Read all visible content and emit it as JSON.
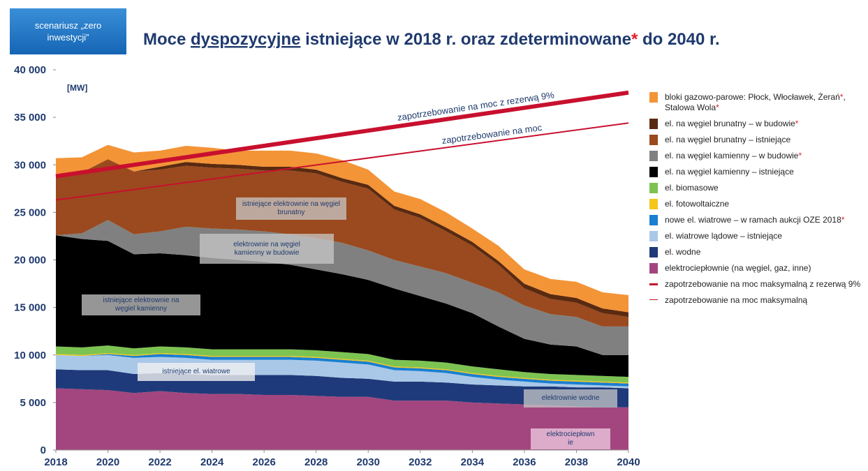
{
  "badge": "scenariusz „zero inwestycji”",
  "chart_data": {
    "type": "stacked_area",
    "title": [
      {
        "text": "Moce "
      },
      {
        "text": "dyspozycyjne",
        "underline": true
      },
      {
        "text": " istniejące w 2018 r. oraz zdeterminowane"
      },
      {
        "text": "*",
        "color": "#e0202a"
      },
      {
        "text": " do 2040 r."
      }
    ],
    "unit_label": "[MW]",
    "x": [
      2018,
      2019,
      2020,
      2021,
      2022,
      2023,
      2024,
      2025,
      2026,
      2027,
      2028,
      2029,
      2030,
      2031,
      2032,
      2033,
      2034,
      2035,
      2036,
      2037,
      2038,
      2039,
      2040
    ],
    "xlim": [
      2018,
      2040
    ],
    "xticks": [
      2018,
      2020,
      2022,
      2024,
      2026,
      2028,
      2030,
      2032,
      2034,
      2036,
      2038,
      2040
    ],
    "ylim": [
      0,
      40000
    ],
    "yticks": [
      0,
      {
        "value": 5000,
        "label": "5 000"
      },
      {
        "value": 10000,
        "label": "10 000"
      },
      {
        "value": 15000,
        "label": "15 000"
      },
      {
        "value": 20000,
        "label": "20 000"
      },
      {
        "value": 25000,
        "label": "25 000"
      },
      {
        "value": 30000,
        "label": "30 000"
      },
      {
        "value": 35000,
        "label": "35 000"
      },
      {
        "value": 40000,
        "label": "40 000"
      }
    ],
    "series": [
      {
        "name": "elektrociepłownie (na węgiel, gaz, inne)",
        "color": "#a3467f",
        "values": [
          6500,
          6400,
          6300,
          6000,
          6200,
          6000,
          5900,
          5900,
          5800,
          5800,
          5700,
          5600,
          5600,
          5200,
          5200,
          5200,
          5000,
          4900,
          4800,
          4700,
          4600,
          4500,
          4500
        ]
      },
      {
        "name": "el. wodne",
        "color": "#1f3a7a",
        "values": [
          2000,
          2000,
          2100,
          2000,
          1900,
          2000,
          2000,
          2000,
          2100,
          2100,
          2100,
          2000,
          1900,
          2000,
          2000,
          1900,
          1900,
          1900,
          1900,
          2000,
          2000,
          2100,
          2000
        ]
      },
      {
        "name": "el. wiatrowe lądowe – istniejące",
        "color": "#a9c8e8",
        "values": [
          1500,
          1500,
          1600,
          1700,
          1700,
          1700,
          1600,
          1600,
          1600,
          1600,
          1600,
          1600,
          1500,
          1200,
          1100,
          1000,
          800,
          600,
          500,
          300,
          300,
          200,
          200
        ]
      },
      {
        "name": "nowe el. wiatrowe – w ramach aukcji OZE 2018*",
        "color": "#1a7fd0",
        "values": [
          0,
          0,
          100,
          200,
          300,
          300,
          300,
          300,
          300,
          300,
          300,
          300,
          300,
          300,
          300,
          300,
          300,
          300,
          300,
          300,
          300,
          300,
          300
        ]
      },
      {
        "name": "el. fotowoltaiczne",
        "color": "#f5c518",
        "values": [
          100,
          100,
          100,
          100,
          100,
          100,
          100,
          100,
          100,
          100,
          100,
          100,
          100,
          100,
          100,
          100,
          100,
          100,
          100,
          100,
          100,
          100,
          100
        ]
      },
      {
        "name": "el. biomasowe",
        "color": "#7dc352",
        "values": [
          800,
          800,
          800,
          700,
          700,
          700,
          700,
          700,
          700,
          700,
          700,
          700,
          700,
          700,
          700,
          700,
          700,
          700,
          600,
          600,
          600,
          600,
          600
        ]
      },
      {
        "name": "el. na węgiel kamienny – istniejące",
        "color": "#000000",
        "values": [
          11700,
          11400,
          11000,
          9900,
          9800,
          9700,
          9600,
          9400,
          9200,
          8900,
          8500,
          8200,
          7800,
          7500,
          6800,
          6200,
          5600,
          4500,
          3500,
          3100,
          3000,
          2200,
          2300
        ]
      },
      {
        "name": "el. na węgiel kamienny – w budowie*",
        "color": "#808080",
        "values": [
          0,
          600,
          2200,
          2100,
          2300,
          3000,
          3100,
          3200,
          3200,
          3200,
          3300,
          3300,
          3100,
          3000,
          3100,
          3200,
          3200,
          3600,
          3500,
          3200,
          3100,
          3000,
          3000
        ]
      },
      {
        "name": "el. na węgiel brunatny – istniejące",
        "color": "#9a4a1e",
        "values": [
          6400,
          6400,
          6400,
          6600,
          6500,
          6400,
          6400,
          6400,
          6400,
          6700,
          6800,
          6400,
          6500,
          5300,
          5100,
          4400,
          3900,
          2900,
          1800,
          1600,
          1500,
          1400,
          1000
        ]
      },
      {
        "name": "el. na węgiel brunatny – w budowie*",
        "color": "#5a2a10",
        "values": [
          0,
          0,
          0,
          0,
          300,
          400,
          400,
          400,
          400,
          400,
          400,
          400,
          400,
          400,
          400,
          400,
          400,
          400,
          500,
          500,
          500,
          500,
          500
        ]
      },
      {
        "name": "bloki gazowo-parowe: Płock, Włocławek, Żerań*, Stalowa Wola*",
        "color": "#f39437",
        "values": [
          1700,
          1600,
          1500,
          2000,
          1700,
          1700,
          1700,
          1500,
          1700,
          1700,
          1700,
          1900,
          1600,
          1500,
          1600,
          1600,
          1400,
          1600,
          1500,
          1600,
          1700,
          1700,
          1800
        ]
      }
    ],
    "lines": [
      {
        "name": "zapotrzebowanie na moc maksymalną z rezerwą 9%",
        "label": "zapotrzebowanie na moc z rezerwą 9%",
        "color": "#c8102e",
        "x": [
          2018,
          2040
        ],
        "values": [
          28800,
          37600
        ]
      },
      {
        "name": "zapotrzebowanie na moc maksymalną",
        "label": "zapotrzebowanie na moc",
        "color": "#c8102e",
        "x": [
          2018,
          2040
        ],
        "values": [
          26300,
          34400
        ]
      }
    ],
    "area_labels": [
      "istniejące elektrownie na węgiel brunatny",
      "elektrownie na węgiel kamienny w budowie",
      "istniejące elektrownie na węgiel kamienny",
      "istniejące el. wiatrowe",
      "elektrownie wodne",
      "elektrociepłownie"
    ]
  }
}
